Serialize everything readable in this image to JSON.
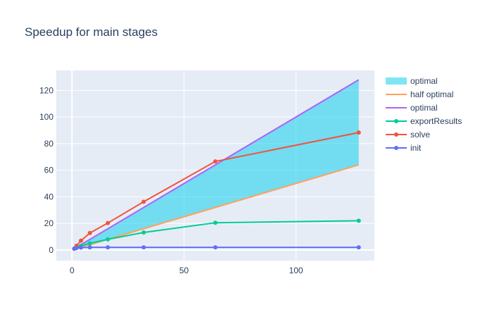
{
  "chart_data": {
    "type": "line",
    "title": "Speedup for main stages",
    "xlabel": "",
    "ylabel": "",
    "xlim": [
      -7,
      135
    ],
    "ylim": [
      -8,
      135
    ],
    "x_ticks": [
      0,
      50,
      100
    ],
    "y_ticks": [
      0,
      20,
      40,
      60,
      80,
      100,
      120
    ],
    "legend_position": "right",
    "grid": true,
    "background_color": "#e5ecf6",
    "band": {
      "name": "optimal",
      "color": "#00cbeb",
      "opacity": 0.5,
      "x": [
        1,
        128
      ],
      "lower": [
        0.5,
        64
      ],
      "upper": [
        1,
        128
      ]
    },
    "series": [
      {
        "name": "half optimal",
        "color": "#ffa15a",
        "markers": false,
        "x": [
          1,
          128
        ],
        "y": [
          0.5,
          64
        ]
      },
      {
        "name": "optimal",
        "color": "#ab63fa",
        "markers": false,
        "x": [
          1,
          128
        ],
        "y": [
          1,
          128
        ]
      },
      {
        "name": "exportResults",
        "color": "#00cc96",
        "markers": true,
        "x": [
          1,
          2,
          4,
          8,
          16,
          32,
          64,
          128
        ],
        "y": [
          1,
          1.8,
          3.2,
          5,
          8,
          13.2,
          20.5,
          22
        ]
      },
      {
        "name": "solve",
        "color": "#ef553b",
        "markers": true,
        "x": [
          1,
          2,
          4,
          8,
          16,
          32,
          64,
          128
        ],
        "y": [
          1,
          3.2,
          7,
          12.8,
          20.3,
          36.3,
          66.6,
          88.3
        ]
      },
      {
        "name": "init",
        "color": "#636efa",
        "markers": true,
        "x": [
          1,
          2,
          4,
          8,
          16,
          32,
          64,
          128
        ],
        "y": [
          1,
          1.5,
          1.8,
          2,
          2,
          2,
          2,
          2
        ]
      }
    ],
    "legend": [
      {
        "label": "optimal",
        "kind": "band",
        "color": "#00cbeb"
      },
      {
        "label": "half optimal",
        "kind": "line",
        "color": "#ffa15a"
      },
      {
        "label": "optimal",
        "kind": "line",
        "color": "#ab63fa"
      },
      {
        "label": "exportResults",
        "kind": "marker-line",
        "color": "#00cc96"
      },
      {
        "label": "solve",
        "kind": "marker-line",
        "color": "#ef553b"
      },
      {
        "label": "init",
        "kind": "marker-line",
        "color": "#636efa"
      }
    ]
  }
}
